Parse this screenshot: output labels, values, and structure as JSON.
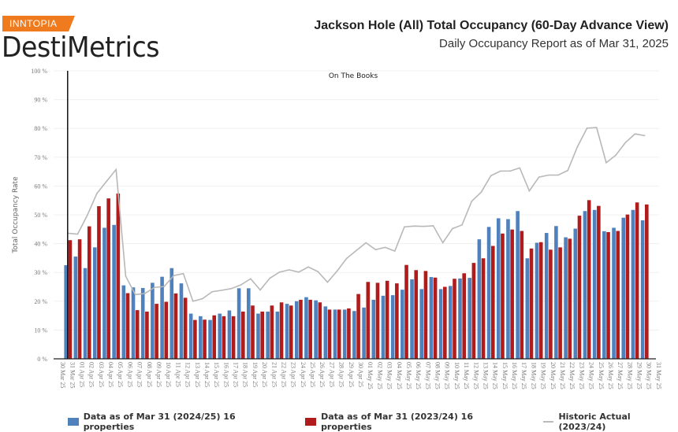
{
  "header": {
    "brand_badge": "INNTOPIA",
    "brand_name": "DestiMetrics",
    "title": "Jackson Hole (All) Total Occupancy (60-Day Advance View)",
    "subtitle": "Daily Occupancy Report as of Mar 31, 2025"
  },
  "colors": {
    "brand": "#f07a1e",
    "blue": "#4f81bd",
    "red": "#b01c1c",
    "line": "#b8b8b8"
  },
  "chart_data": {
    "type": "bar",
    "title": "On The Books",
    "ylabel": "Total Occupancy Rate",
    "xlabel": "",
    "ylim": [
      0,
      100
    ],
    "yticks": [
      "0 %",
      "10 %",
      "20 %",
      "30 %",
      "40 %",
      "50 %",
      "60 %",
      "70 %",
      "80 %",
      "90 %",
      "100 %"
    ],
    "grid": true,
    "legend_position": "bottom",
    "marker_date": "31 Mar 25",
    "categories": [
      "30 Mar 25",
      "31 Mar 25",
      "01 Apr 25",
      "02 Apr 25",
      "03 Apr 25",
      "04 Apr 25",
      "05 Apr 25",
      "06 Apr 25",
      "07 Apr 25",
      "08 Apr 25",
      "09 Apr 25",
      "10 Apr 25",
      "11 Apr 25",
      "12 Apr 25",
      "13 Apr 25",
      "14 Apr 25",
      "15 Apr 25",
      "16 Apr 25",
      "17 Apr 25",
      "18 Apr 25",
      "19 Apr 25",
      "20 Apr 25",
      "21 Apr 25",
      "22 Apr 25",
      "23 Apr 25",
      "24 Apr 25",
      "25 Apr 25",
      "26 Apr 25",
      "27 Apr 25",
      "28 Apr 25",
      "29 Apr 25",
      "30 Apr 25",
      "01 May 25",
      "02 May 25",
      "03 May 25",
      "04 May 25",
      "05 May 25",
      "06 May 25",
      "07 May 25",
      "08 May 25",
      "09 May 25",
      "10 May 25",
      "11 May 25",
      "12 May 25",
      "13 May 25",
      "14 May 25",
      "15 May 25",
      "16 May 25",
      "17 May 25",
      "18 May 25",
      "19 May 25",
      "20 May 25",
      "21 May 25",
      "22 May 25",
      "23 May 25",
      "24 May 25",
      "25 May 25",
      "26 May 25",
      "27 May 25",
      "28 May 25",
      "29 May 25",
      "30 May 25",
      "31 May 25"
    ],
    "series": [
      {
        "name": "Data as of Mar 31 (2024/25) 16 properties",
        "type": "bar",
        "values": [
          null,
          32.5,
          35.5,
          31.5,
          38.7,
          45.5,
          46.5,
          25.5,
          24.8,
          24.6,
          26.4,
          28.5,
          31.5,
          26.2,
          15.7,
          14.8,
          13.5,
          15.7,
          16.8,
          24.5,
          24.5,
          15.7,
          16.4,
          16.4,
          19.1,
          20,
          21.4,
          20.3,
          18.2,
          17.1,
          17.1,
          16.6,
          17.8,
          20.5,
          21.9,
          22.1,
          24,
          27.6,
          24.2,
          28.4,
          24.2,
          25.3,
          27.9,
          28.1,
          41.5,
          45.8,
          48.8,
          48.5,
          51.3,
          34.9,
          40.3,
          43.7,
          46.1,
          42.2,
          45.2,
          51.3,
          51.7,
          44.3,
          45.5,
          49,
          51.7,
          48.1,
          null
        ]
      },
      {
        "name": "Data as of Mar 31 (2023/24) 16 properties",
        "type": "bar",
        "values": [
          null,
          41.2,
          41.5,
          46,
          53,
          55.7,
          57.4,
          22.8,
          16.9,
          16.4,
          19.1,
          19.8,
          22.7,
          21.2,
          13.5,
          13.6,
          15.1,
          14.8,
          14.8,
          16.4,
          18.5,
          16.4,
          18.5,
          19.6,
          18.5,
          20.5,
          20.5,
          19.6,
          17.1,
          17.1,
          17.5,
          22.5,
          26.7,
          26.4,
          27.1,
          26.2,
          32.6,
          30.8,
          30.5,
          28.2,
          25,
          27.8,
          29.7,
          33.3,
          34.9,
          39.2,
          43.5,
          44.9,
          44.4,
          38.3,
          40.5,
          37.9,
          38.7,
          41.7,
          49.7,
          55.1,
          53.1,
          44,
          44.4,
          50.1,
          54.3,
          53.6,
          null
        ]
      },
      {
        "name": "Historic Actual (2023/24)",
        "type": "line",
        "values": [
          null,
          43.6,
          43.3,
          49.8,
          57.4,
          61.6,
          65.7,
          28.7,
          22.3,
          22.7,
          24.8,
          25.1,
          28.9,
          29.6,
          20,
          20.9,
          23.3,
          23.8,
          24.4,
          25.7,
          27.8,
          23.9,
          28,
          30.1,
          30.9,
          30.1,
          31.9,
          30.3,
          26.6,
          30.5,
          34.9,
          37.6,
          40.3,
          37.9,
          38.7,
          37.4,
          45.8,
          46.1,
          46,
          46.2,
          40.3,
          45.2,
          46.5,
          54.7,
          57.9,
          63.6,
          65.2,
          65.2,
          66.3,
          58.3,
          63.1,
          63.8,
          63.8,
          65.4,
          73.6,
          80.1,
          80.3,
          68.1,
          70.7,
          75.1,
          78.1,
          77.5,
          null
        ]
      }
    ]
  }
}
